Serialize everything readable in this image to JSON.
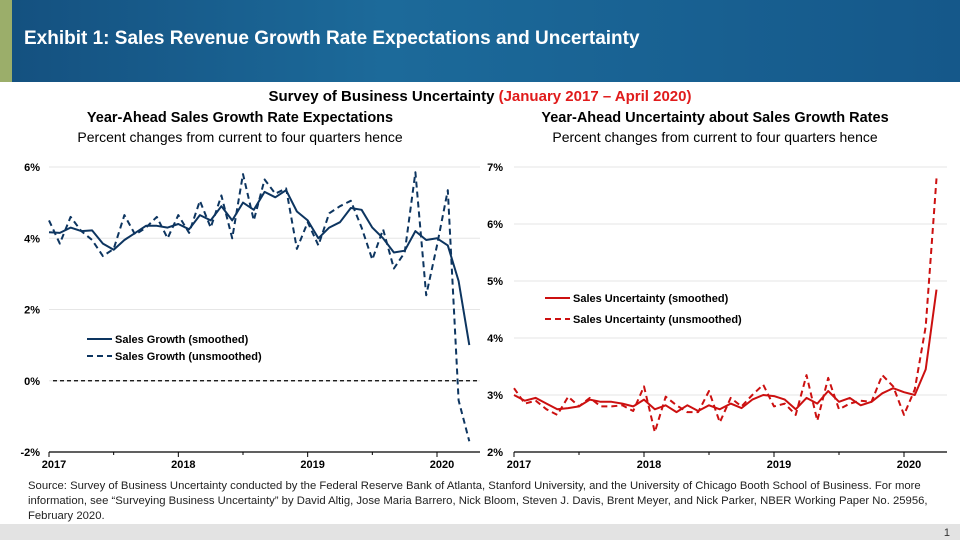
{
  "header": {
    "title": "Exhibit 1: Sales Revenue Growth Rate Expectations and Uncertainty"
  },
  "survey_title": {
    "main": "Survey of Business Uncertainty",
    "period": "(January 2017 – April 2020)"
  },
  "colors": {
    "header_bg": "#1a5f92",
    "accent_stripe": "#9bae6a",
    "growth": "#0d3560",
    "uncertainty": "#cc1010",
    "period_text": "#e01b1b"
  },
  "chart_data": [
    {
      "type": "line",
      "title": "Year-Ahead Sales Growth Rate Expectations",
      "subtitle": "Percent changes from current to four quarters hence",
      "x_start": "2017-01",
      "x_end": "2020-04",
      "frequency": "monthly",
      "xticks": [
        "2017",
        "2018",
        "2019",
        "2020"
      ],
      "yticks": [
        "6%",
        "4%",
        "2%",
        "0%",
        "-2%"
      ],
      "ylim": [
        -2,
        6
      ],
      "grid": true,
      "legend": "center-left",
      "reference_line": 0,
      "series": [
        {
          "name": "Sales Growth (smoothed)",
          "style": "solid",
          "values": [
            4.17,
            4.15,
            4.3,
            4.2,
            4.22,
            3.85,
            3.68,
            3.95,
            4.15,
            4.35,
            4.35,
            4.3,
            4.4,
            4.25,
            4.65,
            4.5,
            4.9,
            4.5,
            5.0,
            4.8,
            5.3,
            5.15,
            5.35,
            4.75,
            4.5,
            4.0,
            4.3,
            4.45,
            4.85,
            4.8,
            4.3,
            4.0,
            3.6,
            3.65,
            4.2,
            3.95,
            4.0,
            3.8,
            2.8,
            1.0
          ]
        },
        {
          "name": "Sales Growth (unsmoothed)",
          "style": "dashed",
          "values": [
            4.5,
            3.85,
            4.6,
            4.2,
            3.95,
            3.5,
            3.7,
            4.65,
            4.1,
            4.3,
            4.6,
            4.0,
            4.65,
            4.15,
            5.05,
            4.3,
            5.2,
            4.0,
            5.8,
            4.5,
            5.65,
            5.25,
            5.4,
            3.7,
            4.45,
            3.8,
            4.7,
            4.9,
            5.05,
            4.3,
            3.4,
            4.25,
            3.15,
            3.6,
            5.85,
            2.4,
            3.8,
            5.35,
            -0.55,
            -1.7
          ]
        }
      ]
    },
    {
      "type": "line",
      "title": "Year-Ahead Uncertainty about Sales Growth Rates",
      "subtitle": "Percent changes from current to four quarters hence",
      "x_start": "2017-01",
      "x_end": "2020-04",
      "frequency": "monthly",
      "xticks": [
        "2017",
        "2018",
        "2019",
        "2020"
      ],
      "yticks": [
        "7%",
        "6%",
        "5%",
        "4%",
        "3%",
        "2%"
      ],
      "ylim": [
        2,
        7
      ],
      "grid": true,
      "legend": "center-left",
      "series": [
        {
          "name": "Sales Uncertainty (smoothed)",
          "style": "solid",
          "values": [
            3.0,
            2.9,
            2.95,
            2.85,
            2.75,
            2.77,
            2.8,
            2.92,
            2.88,
            2.88,
            2.85,
            2.8,
            2.92,
            2.75,
            2.82,
            2.7,
            2.82,
            2.72,
            2.82,
            2.75,
            2.85,
            2.77,
            2.92,
            3.0,
            2.98,
            2.92,
            2.75,
            2.95,
            2.85,
            3.07,
            2.88,
            2.95,
            2.82,
            2.88,
            3.03,
            3.12,
            3.05,
            3.0,
            3.45,
            4.85
          ]
        },
        {
          "name": "Sales Uncertainty (unsmoothed)",
          "style": "dashed",
          "values": [
            3.12,
            2.85,
            2.9,
            2.75,
            2.65,
            2.97,
            2.8,
            2.95,
            2.8,
            2.8,
            2.82,
            2.72,
            3.15,
            2.35,
            2.97,
            2.82,
            2.7,
            2.7,
            3.07,
            2.52,
            2.95,
            2.8,
            3.0,
            3.18,
            2.8,
            2.85,
            2.65,
            3.35,
            2.55,
            3.3,
            2.75,
            2.85,
            2.9,
            2.88,
            3.35,
            3.15,
            2.65,
            3.1,
            4.2,
            6.8
          ]
        }
      ]
    }
  ],
  "source": "Source: Survey of Business Uncertainty conducted by the Federal Reserve Bank of Atlanta, Stanford University, and the University of Chicago Booth School of Business. For more information, see “Surveying Business Uncertainty” by David Altig, Jose Maria Barrero, Nick Bloom, Steven J. Davis, Brent Meyer, and Nick Parker, NBER Working Paper No. 25956, February 2020.",
  "page_number": "1"
}
